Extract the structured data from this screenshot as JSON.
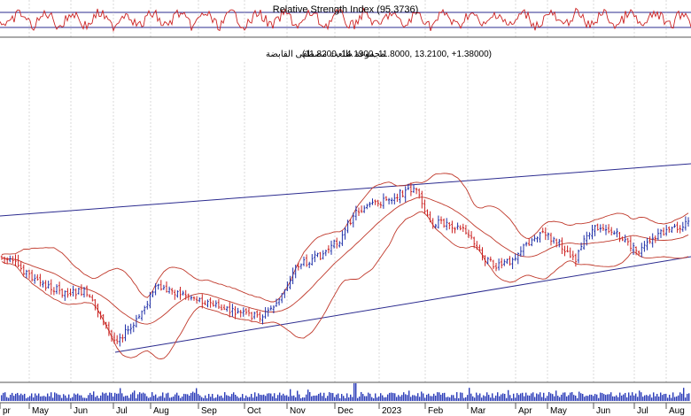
{
  "rsi_panel": {
    "title": "Relative Strength Index (95.3736)"
  },
  "price_panel": {
    "title_arabic": "مجموعة طلعت مصطفى القابضة",
    "ohlc_text": "(11.8200, 14.1900, 11.8000, 13.2100, +1.38000)"
  },
  "chart_data": {
    "type": "candlestick",
    "instrument": "مجموعة طلعت مصطفى القابضة",
    "open": 11.82,
    "high": 14.19,
    "low": 11.8,
    "close": 13.21,
    "change": 1.38,
    "rsi_value": 95.3736,
    "months": [
      "pr",
      "May",
      "Jun",
      "Jul",
      "Aug",
      "Sep",
      "Oct",
      "Nov",
      "Dec",
      "2023",
      "Feb",
      "Mar",
      "Apr",
      "May",
      "Jun",
      "Jul",
      "Aug"
    ],
    "overlays": [
      "Bollinger Bands",
      "Trendlines"
    ],
    "grid": true
  },
  "colors": {
    "up": "#1f2fa8",
    "down": "#cc2222",
    "band": "#c0392b",
    "trendline": "#2b2b8f",
    "grid": "#c8c8c8",
    "volume": "#2a3bb8"
  }
}
